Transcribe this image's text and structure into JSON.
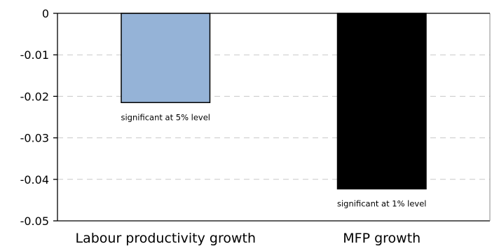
{
  "chart_data": {
    "type": "bar",
    "categories": [
      "Labour productivity growth",
      "MFP growth"
    ],
    "values": [
      -0.0215,
      -0.0423
    ],
    "annotations": [
      "significant at 5%  level",
      "significant at 1%  level"
    ],
    "bar_colors": [
      "#95b3d7",
      "#000000"
    ],
    "bar_edge_colors": [
      "#000000",
      "#000000"
    ],
    "title": "",
    "xlabel": "",
    "ylabel": "",
    "ylim": [
      -0.05,
      0
    ],
    "y_ticks": [
      0,
      -0.01,
      -0.02,
      -0.03,
      -0.04,
      -0.05
    ],
    "y_tick_labels": [
      "0",
      "-0.01",
      "-0.02",
      "-0.03",
      "-0.04",
      "-0.05"
    ],
    "grid": "horizontal dashed",
    "legend": "none"
  }
}
